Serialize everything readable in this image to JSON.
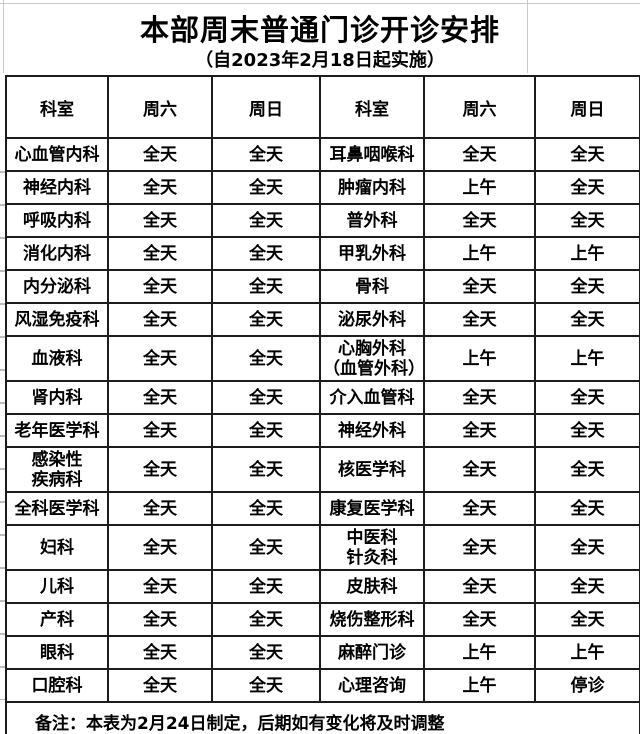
{
  "header": {
    "title": "本部周末普通门诊开诊安排",
    "subtitle": "（自2023年2月18日起实施）"
  },
  "table": {
    "column_headers": [
      "科室",
      "周六",
      "周日",
      "科室",
      "周六",
      "周日"
    ],
    "rows": [
      [
        "心血管内科",
        "全天",
        "全天",
        "耳鼻咽喉科",
        "全天",
        "全天"
      ],
      [
        "神经内科",
        "全天",
        "全天",
        "肿瘤内科",
        "上午",
        "全天"
      ],
      [
        "呼吸内科",
        "全天",
        "全天",
        "普外科",
        "全天",
        "全天"
      ],
      [
        "消化内科",
        "全天",
        "全天",
        "甲乳外科",
        "上午",
        "上午"
      ],
      [
        "内分泌科",
        "全天",
        "全天",
        "骨科",
        "全天",
        "全天"
      ],
      [
        "风湿免疫科",
        "全天",
        "全天",
        "泌尿外科",
        "全天",
        "全天"
      ],
      [
        "血液科",
        "全天",
        "全天",
        "心胸外科\n（血管外科）",
        "上午",
        "上午"
      ],
      [
        "肾内科",
        "全天",
        "全天",
        "介入血管科",
        "全天",
        "全天"
      ],
      [
        "老年医学科",
        "全天",
        "全天",
        "神经外科",
        "全天",
        "全天"
      ],
      [
        "感染性\n疾病科",
        "全天",
        "全天",
        "核医学科",
        "全天",
        "全天"
      ],
      [
        "全科医学科",
        "全天",
        "全天",
        "康复医学科",
        "全天",
        "全天"
      ],
      [
        "妇科",
        "全天",
        "全天",
        "中医科\n针灸科",
        "全天",
        "全天"
      ],
      [
        "儿科",
        "全天",
        "全天",
        "皮肤科",
        "全天",
        "全天"
      ],
      [
        "产科",
        "全天",
        "全天",
        "烧伤整形科",
        "全天",
        "全天"
      ],
      [
        "眼科",
        "全天",
        "全天",
        "麻醉门诊",
        "上午",
        "上午"
      ],
      [
        "口腔科",
        "全天",
        "全天",
        "心理咨询",
        "上午",
        "停诊"
      ]
    ],
    "note": "备注：本表为2月24日制定，后期如有变化将及时调整"
  },
  "colors": {
    "text": "#000000",
    "border": "#1c1c1c",
    "background": "#ffffff",
    "gridline_artifact": "#c9c9c9"
  }
}
